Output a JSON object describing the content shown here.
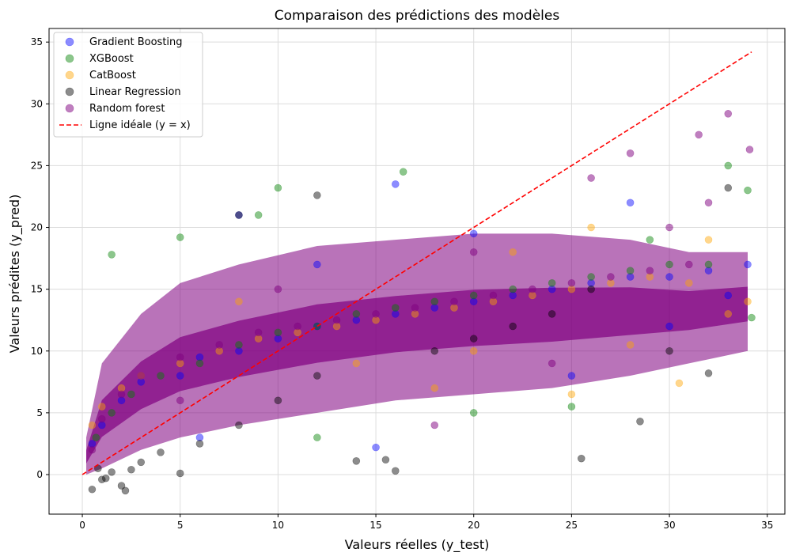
{
  "chart_data": {
    "type": "scatter",
    "title": "Comparaison des prédictions des modèles",
    "xlabel": "Valeurs réelles (y_test)",
    "ylabel": "Valeurs prédites (y_pred)",
    "xlim": [
      -1.7,
      35.9
    ],
    "ylim": [
      -3.2,
      36.1
    ],
    "xticks": [
      0,
      5,
      10,
      15,
      20,
      25,
      30,
      35
    ],
    "yticks": [
      0,
      5,
      10,
      15,
      20,
      25,
      30,
      35
    ],
    "grid": true,
    "legend_position": "top-left",
    "series": [
      {
        "name": "Gradient Boosting",
        "color": "#0000ff",
        "alpha": 0.45,
        "points": [
          [
            0.5,
            2.5
          ],
          [
            1,
            4
          ],
          [
            2,
            6
          ],
          [
            3,
            7.5
          ],
          [
            5,
            8
          ],
          [
            6,
            9.5
          ],
          [
            8,
            10
          ],
          [
            10,
            11
          ],
          [
            12,
            12
          ],
          [
            14,
            12.5
          ],
          [
            16,
            13
          ],
          [
            18,
            13.5
          ],
          [
            20,
            14
          ],
          [
            22,
            14.5
          ],
          [
            24,
            15
          ],
          [
            26,
            15.5
          ],
          [
            28,
            16
          ],
          [
            30,
            16
          ],
          [
            32,
            16.5
          ],
          [
            34,
            17
          ],
          [
            8,
            21
          ],
          [
            16,
            23.5
          ],
          [
            25,
            8
          ],
          [
            30,
            12
          ],
          [
            33,
            14.5
          ],
          [
            15,
            2.2
          ],
          [
            12,
            17
          ],
          [
            20,
            19.5
          ],
          [
            28,
            22
          ],
          [
            6,
            3
          ]
        ]
      },
      {
        "name": "XGBoost",
        "color": "#008000",
        "alpha": 0.45,
        "points": [
          [
            0.7,
            3
          ],
          [
            1.5,
            5
          ],
          [
            2.5,
            6.5
          ],
          [
            4,
            8
          ],
          [
            6,
            9
          ],
          [
            8,
            10.5
          ],
          [
            10,
            11.5
          ],
          [
            12,
            12
          ],
          [
            14,
            13
          ],
          [
            16,
            13.5
          ],
          [
            18,
            14
          ],
          [
            20,
            14.5
          ],
          [
            22,
            15
          ],
          [
            24,
            15.5
          ],
          [
            26,
            16
          ],
          [
            28,
            16.5
          ],
          [
            30,
            17
          ],
          [
            32,
            17
          ],
          [
            34,
            23
          ],
          [
            1.5,
            17.8
          ],
          [
            10,
            23.2
          ],
          [
            16.4,
            24.5
          ],
          [
            33,
            25
          ],
          [
            34.2,
            12.7
          ],
          [
            20,
            5
          ],
          [
            25,
            5.5
          ],
          [
            12,
            3
          ],
          [
            9,
            21
          ],
          [
            29,
            19
          ],
          [
            5,
            19.2
          ]
        ]
      },
      {
        "name": "CatBoost",
        "color": "#ffa500",
        "alpha": 0.45,
        "points": [
          [
            0.5,
            4
          ],
          [
            1,
            5.5
          ],
          [
            2,
            7
          ],
          [
            3,
            8
          ],
          [
            5,
            9
          ],
          [
            7,
            10
          ],
          [
            9,
            11
          ],
          [
            11,
            11.5
          ],
          [
            13,
            12
          ],
          [
            15,
            12.5
          ],
          [
            17,
            13
          ],
          [
            19,
            13.5
          ],
          [
            21,
            14
          ],
          [
            23,
            14.5
          ],
          [
            25,
            15
          ],
          [
            27,
            15.5
          ],
          [
            29,
            16
          ],
          [
            31,
            15.5
          ],
          [
            33,
            13
          ],
          [
            34,
            14
          ],
          [
            25,
            6.5
          ],
          [
            30.5,
            7.4
          ],
          [
            20,
            10
          ],
          [
            18,
            7
          ],
          [
            28,
            10.5
          ],
          [
            14,
            9
          ],
          [
            22,
            18
          ],
          [
            8,
            14
          ],
          [
            32,
            19
          ],
          [
            26,
            20
          ]
        ]
      },
      {
        "name": "Linear Regression",
        "color": "#000000",
        "alpha": 0.45,
        "points": [
          [
            0.5,
            -1.2
          ],
          [
            1,
            -0.4
          ],
          [
            1.5,
            0.2
          ],
          [
            2,
            -0.9
          ],
          [
            2.2,
            -1.3
          ],
          [
            2.5,
            0.4
          ],
          [
            1.2,
            -0.3
          ],
          [
            0.8,
            0.5
          ],
          [
            3,
            1
          ],
          [
            4,
            1.8
          ],
          [
            5,
            0.1
          ],
          [
            6,
            2.5
          ],
          [
            8,
            4
          ],
          [
            10,
            6
          ],
          [
            12,
            8
          ],
          [
            14,
            1.1
          ],
          [
            15.5,
            1.2
          ],
          [
            16,
            0.3
          ],
          [
            18,
            10
          ],
          [
            20,
            11
          ],
          [
            22,
            12
          ],
          [
            24,
            13
          ],
          [
            25.5,
            1.3
          ],
          [
            28.5,
            4.3
          ],
          [
            30,
            10
          ],
          [
            32,
            8.2
          ],
          [
            33,
            23.2
          ],
          [
            8,
            21
          ],
          [
            26,
            15
          ],
          [
            12,
            22.6
          ]
        ]
      },
      {
        "name": "Random forest",
        "color": "#800080",
        "alpha": 0.5,
        "points": [
          [
            0.5,
            2
          ],
          [
            1,
            4.5
          ],
          [
            2,
            6.5
          ],
          [
            3,
            8
          ],
          [
            5,
            9.5
          ],
          [
            7,
            10.5
          ],
          [
            9,
            11.5
          ],
          [
            11,
            12
          ],
          [
            13,
            12.5
          ],
          [
            15,
            13
          ],
          [
            17,
            13.5
          ],
          [
            19,
            14
          ],
          [
            21,
            14.5
          ],
          [
            23,
            15
          ],
          [
            25,
            15.5
          ],
          [
            27,
            16
          ],
          [
            29,
            16.5
          ],
          [
            31,
            17
          ],
          [
            33,
            29.2
          ],
          [
            31.5,
            27.5
          ],
          [
            34.1,
            26.3
          ],
          [
            28,
            26
          ],
          [
            30,
            20
          ],
          [
            32,
            22
          ],
          [
            20,
            18
          ],
          [
            10,
            15
          ],
          [
            5,
            6
          ],
          [
            24,
            9
          ],
          [
            18,
            4
          ],
          [
            26,
            24
          ]
        ]
      },
      {
        "name": "Ligne idéale (y = x)",
        "color": "#ff0000",
        "line": true,
        "dashed": true,
        "points": [
          [
            0,
            0
          ],
          [
            34.2,
            34.2
          ]
        ]
      }
    ],
    "density_band": {
      "color": "#800080",
      "description_free": true,
      "upper": [
        [
          0.2,
          3
        ],
        [
          1,
          9
        ],
        [
          3,
          13
        ],
        [
          5,
          15.5
        ],
        [
          8,
          17
        ],
        [
          12,
          18.5
        ],
        [
          16,
          19
        ],
        [
          20,
          19.5
        ],
        [
          24,
          19.5
        ],
        [
          28,
          19
        ],
        [
          31,
          18
        ],
        [
          34,
          18
        ]
      ],
      "lower": [
        [
          0.2,
          0
        ],
        [
          1,
          0.5
        ],
        [
          3,
          2
        ],
        [
          5,
          3
        ],
        [
          8,
          4
        ],
        [
          12,
          5
        ],
        [
          16,
          6
        ],
        [
          20,
          6.5
        ],
        [
          24,
          7
        ],
        [
          28,
          8
        ],
        [
          31,
          9
        ],
        [
          34,
          10
        ]
      ]
    }
  }
}
